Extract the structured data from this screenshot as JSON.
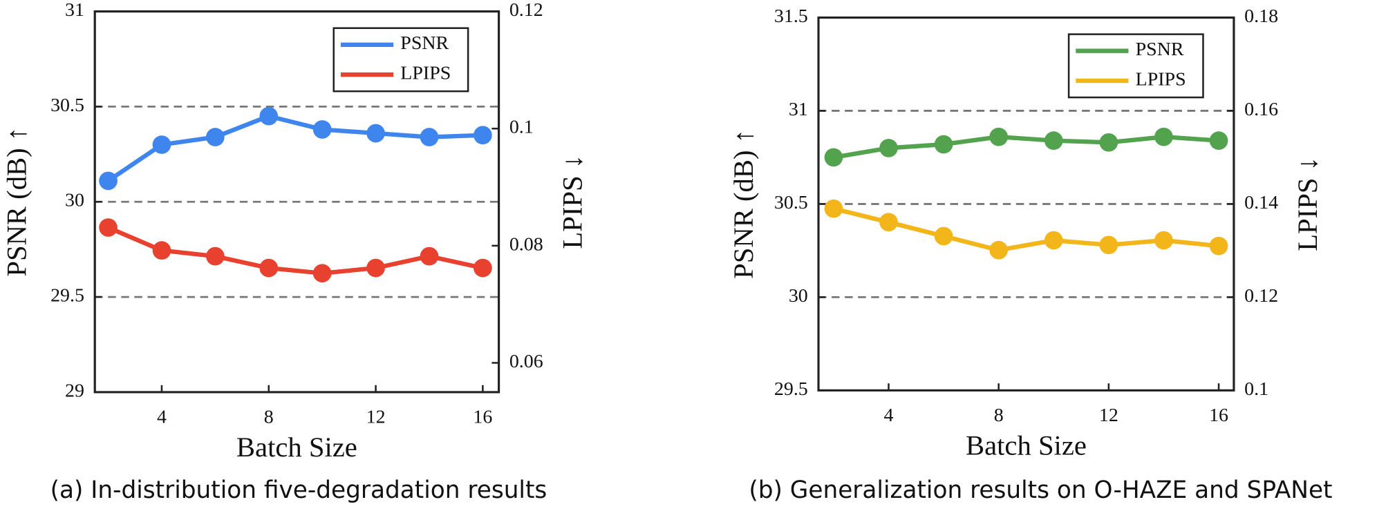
{
  "chart_data": [
    {
      "type": "line",
      "caption": "(a) In-distribution five-degradation results",
      "x_label": "Batch Size",
      "y_label": "PSNR (dB) ↑",
      "y2_label": "LPIPS ↓",
      "x": [
        2,
        4,
        6,
        8,
        10,
        12,
        14,
        16
      ],
      "xlim": [
        1.5,
        16.6
      ],
      "xticks": [
        4,
        8,
        12,
        16
      ],
      "ylim": [
        29,
        31
      ],
      "yticks": [
        29,
        29.5,
        30,
        30.5,
        31
      ],
      "y2lim": [
        0.055,
        0.12
      ],
      "y2ticks": [
        0.06,
        0.08,
        0.1,
        0.12
      ],
      "grid": true,
      "legend": "upper right",
      "series": [
        {
          "name": "PSNR",
          "color": "#3e86ee",
          "values": [
            30.11,
            30.3,
            30.34,
            30.45,
            30.38,
            30.36,
            30.34,
            30.35
          ]
        },
        {
          "name": "LPIPS",
          "color": "#e8412f",
          "axis": "y2",
          "values": [
            0.0831,
            0.0792,
            0.0782,
            0.0762,
            0.0753,
            0.0762,
            0.0782,
            0.0762
          ]
        }
      ]
    },
    {
      "type": "line",
      "caption": "(b) Generalization results on O-HAZE and SPANet",
      "x_label": "Batch Size",
      "y_label": "PSNR (dB) ↑",
      "y2_label": "LPIPS ↓",
      "x": [
        2,
        4,
        6,
        8,
        10,
        12,
        14,
        16
      ],
      "xlim": [
        1.45,
        16.55
      ],
      "xticks": [
        4,
        8,
        12,
        16
      ],
      "ylim": [
        29.5,
        31.5
      ],
      "yticks": [
        29.5,
        30,
        30.5,
        31,
        31.5
      ],
      "y2lim": [
        0.1,
        0.18
      ],
      "y2ticks": [
        0.1,
        0.12,
        0.14,
        0.16,
        0.18
      ],
      "grid": true,
      "legend": "upper right",
      "series": [
        {
          "name": "PSNR",
          "color": "#52a24e",
          "values": [
            30.75,
            30.8,
            30.82,
            30.86,
            30.84,
            30.83,
            30.86,
            30.84
          ]
        },
        {
          "name": "LPIPS",
          "color": "#f2b51a",
          "axis": "y2",
          "values": [
            0.139,
            0.1361,
            0.1331,
            0.1301,
            0.1322,
            0.1312,
            0.1322,
            0.131
          ]
        }
      ]
    }
  ]
}
